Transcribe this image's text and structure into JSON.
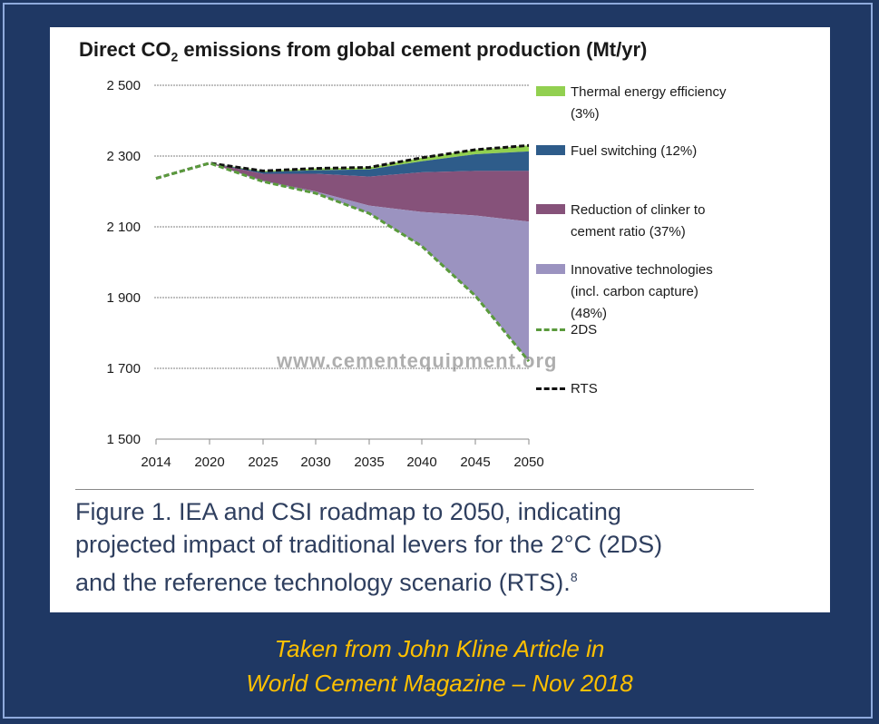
{
  "chart_data": {
    "type": "area",
    "title": "Direct CO",
    "title_sub": "2",
    "title_rest": " emissions from global cement production (Mt/yr)",
    "x": [
      2014,
      2020,
      2025,
      2030,
      2035,
      2040,
      2045,
      2050
    ],
    "x_tick_labels": [
      "2014",
      "2020",
      "2025",
      "2030",
      "2035",
      "2040",
      "2045",
      "2050"
    ],
    "ylim": [
      1500,
      2500
    ],
    "y_ticks": [
      1500,
      1700,
      1900,
      2100,
      2300,
      2500
    ],
    "y_tick_labels": [
      "1 500",
      "1 700",
      "1 900",
      "2 100",
      "2 300",
      "2 500"
    ],
    "grid": true,
    "series": [
      {
        "name": "RTS",
        "style": "dashed",
        "color": "#111111",
        "values": [
          2237,
          2280,
          2258,
          2265,
          2268,
          2295,
          2318,
          2330
        ]
      },
      {
        "name": "2DS",
        "style": "dashed",
        "color": "#5a9a3c",
        "values": [
          2237,
          2280,
          2228,
          2195,
          2138,
          2045,
          1905,
          1720
        ]
      }
    ],
    "wedges": [
      {
        "name": "Thermal energy efficiency",
        "share": "(3%)",
        "color": "#92d050",
        "upper": [
          2237,
          2280,
          2258,
          2265,
          2268,
          2295,
          2318,
          2330
        ],
        "lower": [
          2237,
          2280,
          2255,
          2260,
          2262,
          2285,
          2305,
          2313
        ]
      },
      {
        "name": "Fuel switching",
        "share": "(12%)",
        "color": "#2e5c8a",
        "upper": [
          2237,
          2280,
          2255,
          2260,
          2262,
          2285,
          2305,
          2313
        ],
        "lower": [
          2237,
          2280,
          2250,
          2250,
          2242,
          2254,
          2258,
          2258
        ]
      },
      {
        "name": "Reduction of clinker to cement ratio",
        "share": "(37%)",
        "color": "#86527a",
        "upper": [
          2237,
          2280,
          2250,
          2250,
          2242,
          2254,
          2258,
          2258
        ],
        "lower": [
          2237,
          2280,
          2230,
          2200,
          2160,
          2142,
          2132,
          2115
        ]
      },
      {
        "name": "Innovative technologies (incl. carbon capture)",
        "share": "(48%)",
        "color": "#9b93c0",
        "upper": [
          2237,
          2280,
          2230,
          2200,
          2160,
          2142,
          2132,
          2115
        ],
        "lower": [
          2237,
          2280,
          2228,
          2195,
          2138,
          2045,
          1905,
          1720
        ]
      }
    ],
    "legend": [
      {
        "label": "Thermal energy efficiency",
        "label2": "(3%)",
        "color": "#92d050",
        "kind": "patch"
      },
      {
        "label": "Fuel switching (12%)",
        "color": "#2e5c8a",
        "kind": "patch"
      },
      {
        "label": "Reduction of clinker to",
        "label2": "cement ratio (37%)",
        "color": "#86527a",
        "kind": "patch"
      },
      {
        "label": "Innovative technologies",
        "label2": "(incl. carbon capture)",
        "label3": "(48%)",
        "color": "#9b93c0",
        "kind": "patch"
      },
      {
        "label": "2DS",
        "color": "#5a9a3c",
        "kind": "dash"
      },
      {
        "label": "RTS",
        "color": "#111111",
        "kind": "dash"
      }
    ],
    "legend_position": "right"
  },
  "watermark": "www.cementequipment.org",
  "caption": {
    "line1": "Figure 1. IEA and CSI roadmap to 2050, indicating",
    "line2": "projected impact of traditional levers for the 2°C (2DS)",
    "line3": "and the reference technology scenario (RTS).",
    "footnote": "8"
  },
  "credit": {
    "line1": "Taken from John Kline Article in",
    "line2": "World Cement Magazine – Nov 2018"
  },
  "colors": {
    "background": "#1f3864",
    "credit": "#ffc000",
    "caption": "#2f3f5f"
  }
}
